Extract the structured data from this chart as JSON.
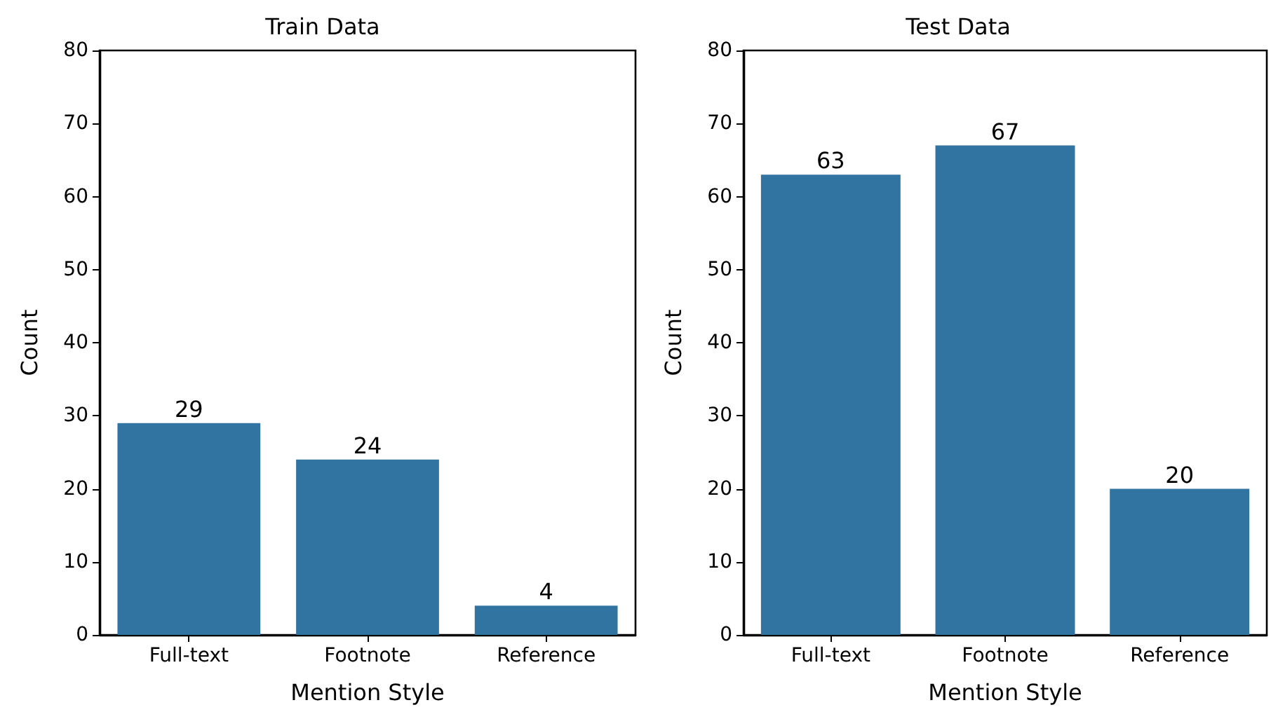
{
  "chart_data": [
    {
      "type": "bar",
      "title": "Train Data",
      "xlabel": "Mention Style",
      "ylabel": "Count",
      "categories": [
        "Full-text",
        "Footnote",
        "Reference"
      ],
      "values": [
        29,
        24,
        4
      ],
      "color": "#3274a1",
      "ylim": [
        0,
        80
      ],
      "yticks": [
        0,
        10,
        20,
        30,
        40,
        50,
        60,
        70,
        80
      ],
      "data_labels": true
    },
    {
      "type": "bar",
      "title": "Test Data",
      "xlabel": "Mention Style",
      "ylabel": "Count",
      "categories": [
        "Full-text",
        "Footnote",
        "Reference"
      ],
      "values": [
        63,
        67,
        20
      ],
      "color": "#3274a1",
      "ylim": [
        0,
        80
      ],
      "yticks": [
        0,
        10,
        20,
        30,
        40,
        50,
        60,
        70,
        80
      ],
      "data_labels": true
    }
  ]
}
